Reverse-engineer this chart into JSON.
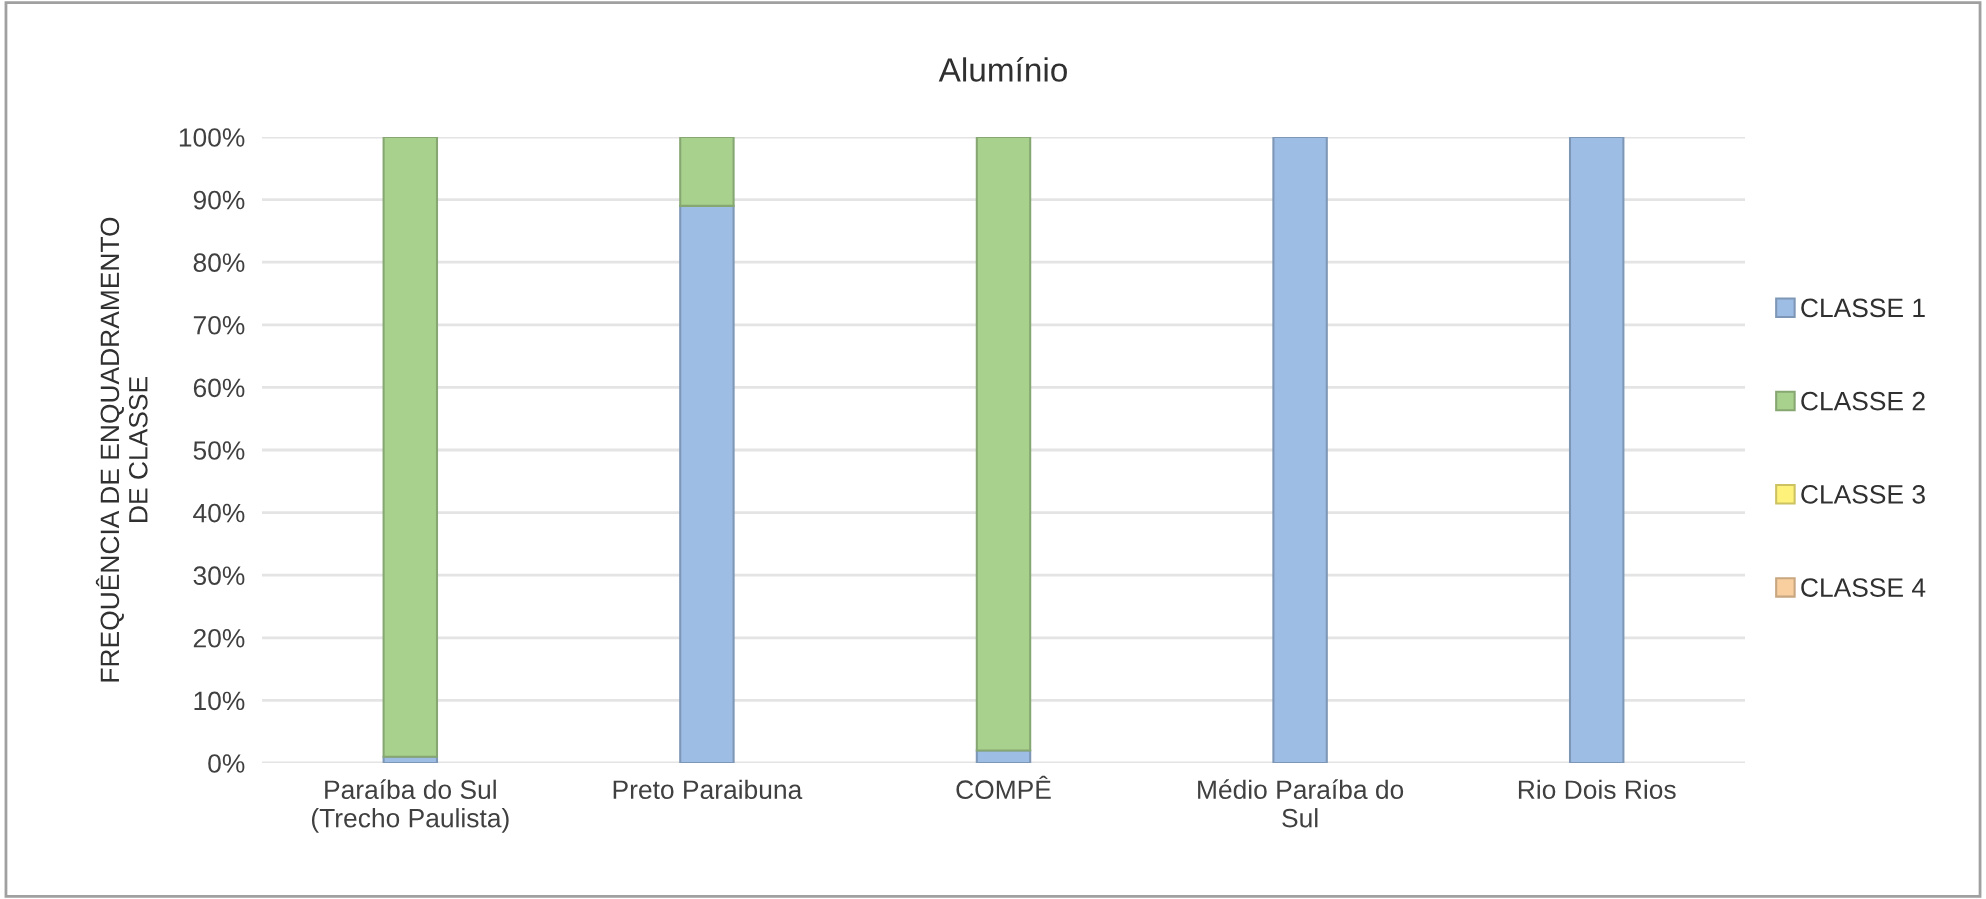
{
  "chart_data": {
    "type": "bar",
    "title": "Alumínio",
    "ylabel": "FREQUÊNCIA DE ENQUADRAMENTO\nDE CLASSE",
    "categories": [
      "Paraíba do Sul\n(Trecho Paulista)",
      "Preto Paraibuna",
      "COMPÊ",
      "Médio Paraíba do\nSul",
      "Rio Dois Rios"
    ],
    "stacked": true,
    "series": [
      {
        "name": "CLASSE 1",
        "color": "#9dbde4",
        "values": [
          1,
          89,
          2,
          100,
          100
        ]
      },
      {
        "name": "CLASSE 2",
        "color": "#a9d18e",
        "values": [
          99,
          11,
          98,
          0,
          0
        ]
      },
      {
        "name": "CLASSE 3",
        "color": "#fff27a",
        "values": [
          0,
          0,
          0,
          0,
          0
        ]
      },
      {
        "name": "CLASSE 4",
        "color": "#f9cfa0",
        "values": [
          0,
          0,
          0,
          0,
          0
        ]
      }
    ],
    "ylim": [
      0,
      100
    ],
    "yticks": [
      {
        "value": 0,
        "label": "0%"
      },
      {
        "value": 10,
        "label": "10%"
      },
      {
        "value": 20,
        "label": "20%"
      },
      {
        "value": 30,
        "label": "30%"
      },
      {
        "value": 40,
        "label": "40%"
      },
      {
        "value": 50,
        "label": "50%"
      },
      {
        "value": 60,
        "label": "60%"
      },
      {
        "value": 70,
        "label": "70%"
      },
      {
        "value": 80,
        "label": "80%"
      },
      {
        "value": 90,
        "label": "90%"
      },
      {
        "value": 100,
        "label": "100%"
      }
    ],
    "grid": "y",
    "legend": "right"
  }
}
